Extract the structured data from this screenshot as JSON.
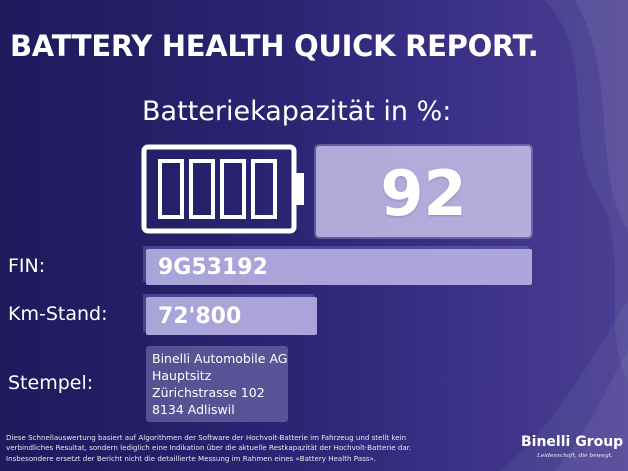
{
  "report": {
    "title": "BATTERY HEALTH QUICK REPORT.",
    "subtitle": "Batteriekapazität in %:",
    "capacity_value": "92"
  },
  "fields": {
    "fin_label": "FIN:",
    "fin_value": "9G53192",
    "km_label": "Km-Stand:",
    "km_value": "72'800",
    "stamp_label": "Stempel:",
    "stamp_lines": [
      "Binelli Automobile AG",
      "Hauptsitz",
      "Zürichstrasse 102",
      "8134 Adliswil"
    ]
  },
  "footer": {
    "disclaimer_lines": [
      "Diese Schnellauswertung basiert auf Algorithmen der Software der Hochvolt-Batterie im Fahrzeug und stellt kein",
      "verbindliches Resultat, sondern lediglich eine Indikation über die aktuelle Restkapazität der Hochvolt-Batterie dar.",
      "Insbesondere ersetzt der Bericht nicht die detaillierte Messung im Rahmen eines «Battery Health Pass»."
    ],
    "brand_name": "Binelli Group",
    "brand_slogan": "Leidenschaft, die bewegt."
  },
  "icons": {
    "battery": "battery-full-icon"
  },
  "colors": {
    "background_dark": "#1e1a5c",
    "background_light": "#4a3f93",
    "value_box": "#bcb6e8",
    "text": "#ffffff"
  }
}
